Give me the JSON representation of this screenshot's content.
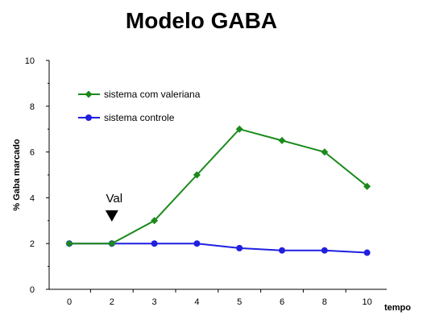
{
  "title": "Modelo GABA",
  "chart_data": {
    "type": "line",
    "title": "Modelo GABA",
    "xlabel": "tempo",
    "ylabel": "% Gaba marcado",
    "categories": [
      "0",
      "2",
      "3",
      "4",
      "5",
      "6",
      "8",
      "10"
    ],
    "ylim": [
      0,
      10
    ],
    "yticks": [
      "0",
      "2",
      "4",
      "6",
      "8",
      "10"
    ],
    "grid": false,
    "legend_position": "top-left",
    "series": [
      {
        "name": "sistema com valeriana",
        "color": "#1a8a1a",
        "marker": "diamond",
        "values": [
          2.0,
          2.0,
          3.0,
          5.0,
          7.0,
          6.5,
          6.0,
          4.5
        ]
      },
      {
        "name": "sistema controle",
        "color": "#1f1fe0",
        "marker": "circle",
        "values": [
          2.0,
          2.0,
          2.0,
          2.0,
          1.8,
          1.7,
          1.7,
          1.6
        ]
      }
    ],
    "annotations": [
      {
        "text": "Val",
        "category": "2",
        "symbol": "down-triangle"
      }
    ]
  }
}
